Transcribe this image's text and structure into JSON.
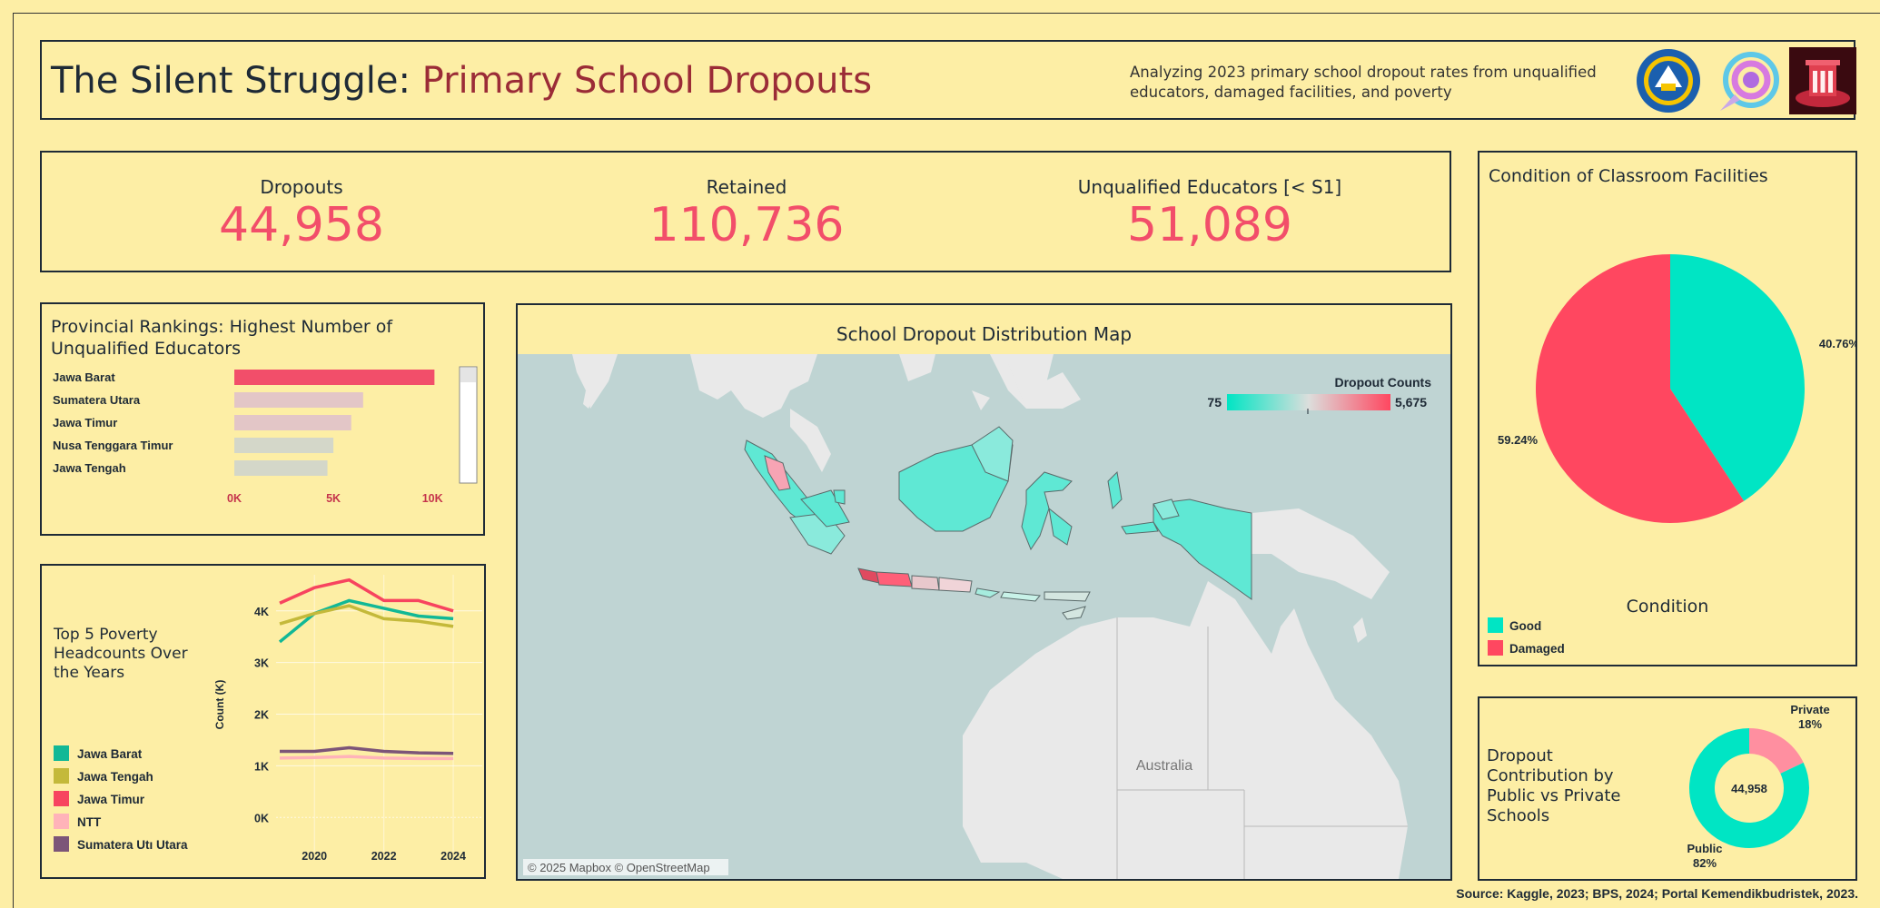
{
  "header": {
    "title_part1": "The Silent Struggle: ",
    "title_part2": "Primary School Dropouts",
    "subtitle": "Analyzing 2023 primary school dropout rates from unqualified educators, damaged facilities, and poverty",
    "logos": [
      "kemendikbud-logo",
      "app-logo",
      "monument-logo"
    ]
  },
  "kpis": [
    {
      "label": "Dropouts",
      "value": "44,958"
    },
    {
      "label": "Retained",
      "value": "110,736"
    },
    {
      "label": "Unqualified Educators [< S1]",
      "value": "51,089"
    }
  ],
  "colors": {
    "background": "#fdeea5",
    "accent_red": "#f24e6a",
    "teal": "#00e5c4",
    "dark": "#1e2a36"
  },
  "rankings": {
    "title": "Provincial Rankings: Highest Number of Unqualified Educators",
    "chart_data": {
      "type": "bar",
      "orientation": "horizontal",
      "categories": [
        "Jawa Barat",
        "Sumatera Utara",
        "Jawa Timur",
        "Nusa Tenggara Timur",
        "Jawa Tengah"
      ],
      "values": [
        10100,
        6500,
        5900,
        5000,
        4700
      ],
      "ticks": [
        "0K",
        "5K",
        "10K"
      ],
      "xlim": [
        0,
        11000
      ],
      "bar_colors": [
        "#f24e6a",
        "#e3c6c7",
        "#e3c6c7",
        "#d4d7c9",
        "#d4d7c9"
      ]
    }
  },
  "map": {
    "title": "School Dropout Distribution Map",
    "legend_title": "Dropout Counts",
    "legend_min": "75",
    "legend_max": "5,675",
    "land_label": "Australia",
    "attribution": "© 2025 Mapbox © OpenStreetMap"
  },
  "facilities": {
    "title": "Condition of Classroom Facilities",
    "legend_title": "Condition",
    "chart_data": {
      "type": "pie",
      "categories": [
        "Good",
        "Damaged"
      ],
      "values": [
        40.76,
        59.24
      ],
      "labels": [
        "40.76%",
        "59.24%"
      ],
      "colors": [
        "#00e5c4",
        "#ff4760"
      ]
    }
  },
  "poverty": {
    "title": "Top 5 Poverty Headcounts Over the Years",
    "chart_data": {
      "type": "line",
      "x": [
        2019,
        2020,
        2021,
        2022,
        2023,
        2024
      ],
      "xticks": [
        "2020",
        "2022",
        "2024"
      ],
      "yticks": [
        "0K",
        "1K",
        "2K",
        "3K",
        "4K"
      ],
      "ylabel": "Count (K)",
      "ylim": [
        -0.4,
        4.7
      ],
      "series": [
        {
          "name": "Jawa Barat",
          "color": "#12b896",
          "values": [
            3.4,
            3.95,
            4.2,
            4.05,
            3.9,
            3.85
          ]
        },
        {
          "name": "Jawa Tengah",
          "color": "#c4b93a",
          "values": [
            3.75,
            3.95,
            4.1,
            3.85,
            3.8,
            3.7
          ]
        },
        {
          "name": "Jawa Timur",
          "color": "#f7445f",
          "values": [
            4.15,
            4.45,
            4.6,
            4.2,
            4.2,
            4.0
          ]
        },
        {
          "name": "NTT",
          "color": "#ffb3b9",
          "values": [
            1.15,
            1.16,
            1.18,
            1.15,
            1.14,
            1.14
          ]
        },
        {
          "name": "Sumatera Utara",
          "color": "#7c5578",
          "values": [
            1.28,
            1.28,
            1.35,
            1.28,
            1.25,
            1.24
          ]
        }
      ],
      "legend": [
        "Jawa Barat",
        "Jawa Tengah",
        "Jawa Timur",
        "NTT",
        "Sumatera Utı Utara"
      ]
    }
  },
  "contrib": {
    "title": "Dropout Contribution by Public vs Private Schools",
    "center_value": "44,958",
    "chart_data": {
      "type": "pie",
      "variant": "donut",
      "categories": [
        "Private",
        "Public"
      ],
      "values": [
        18,
        82
      ],
      "labels": [
        "18%",
        "82%"
      ],
      "colors": [
        "#ff8fa0",
        "#00e5c4"
      ]
    }
  },
  "source": "Source: Kaggle, 2023; BPS, 2024; Portal Kemendikbudristek, 2023."
}
